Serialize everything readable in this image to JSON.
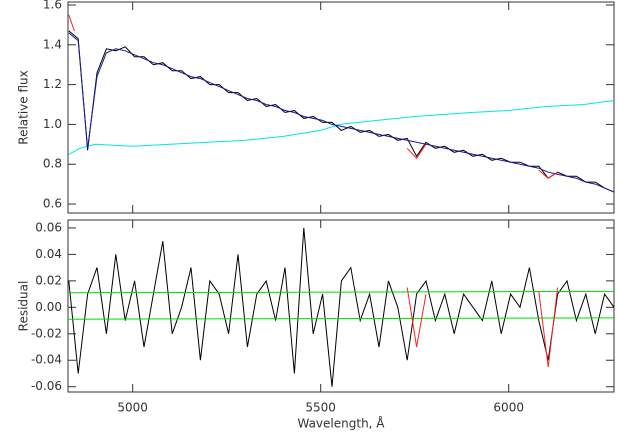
{
  "chart_data": [
    {
      "type": "line",
      "ylabel": "Relative flux",
      "x": [
        4830,
        4855,
        4880,
        4905,
        4930,
        4955,
        4980,
        5005,
        5030,
        5055,
        5080,
        5105,
        5130,
        5155,
        5180,
        5205,
        5230,
        5255,
        5280,
        5305,
        5330,
        5355,
        5380,
        5405,
        5430,
        5455,
        5480,
        5505,
        5530,
        5555,
        5580,
        5605,
        5630,
        5655,
        5680,
        5705,
        5730,
        5755,
        5780,
        5805,
        5830,
        5855,
        5880,
        5905,
        5930,
        5955,
        5980,
        6005,
        6030,
        6055,
        6080,
        6105,
        6130,
        6155,
        6180,
        6205,
        6230,
        6255,
        6280
      ],
      "xlim": [
        4828,
        6280
      ],
      "ylim": [
        0.555,
        1.615
      ],
      "yticks": [
        0.6,
        0.8,
        {
          "value": 1,
          "label": "1.0"
        },
        1.2,
        1.4,
        1.6
      ],
      "series": [
        {
          "color": "#00e5e5",
          "x": [
            4830,
            4860,
            4900,
            5000,
            5100,
            5200,
            5300,
            5400,
            5500,
            5550,
            5650,
            5750,
            5900,
            6000,
            6100,
            6200,
            6280
          ],
          "values": [
            0.85,
            0.88,
            0.9,
            0.89,
            0.9,
            0.91,
            0.92,
            0.94,
            0.97,
            1.0,
            1.02,
            1.04,
            1.06,
            1.07,
            1.09,
            1.1,
            1.12
          ]
        },
        {
          "color": "#000000",
          "values": [
            1.47,
            1.43,
            0.87,
            1.26,
            1.38,
            1.37,
            1.39,
            1.34,
            1.34,
            1.3,
            1.31,
            1.27,
            1.27,
            1.23,
            1.24,
            1.2,
            1.2,
            1.16,
            1.16,
            1.12,
            1.13,
            1.09,
            1.1,
            1.06,
            1.07,
            1.03,
            1.04,
            1.01,
            1.01,
            0.97,
            0.99,
            0.96,
            0.97,
            0.94,
            0.95,
            0.92,
            0.93,
            0.84,
            0.91,
            0.88,
            0.89,
            0.86,
            0.87,
            0.84,
            0.85,
            0.82,
            0.83,
            0.81,
            0.81,
            0.79,
            0.79,
            0.73,
            0.76,
            0.74,
            0.74,
            0.71,
            0.71,
            0.68,
            0.66
          ]
        },
        {
          "color": "#1a1aa0",
          "values": [
            1.46,
            1.42,
            0.88,
            1.24,
            1.36,
            1.38,
            1.37,
            1.35,
            1.33,
            1.31,
            1.3,
            1.28,
            1.26,
            1.24,
            1.23,
            1.21,
            1.19,
            1.17,
            1.15,
            1.13,
            1.12,
            1.1,
            1.09,
            1.07,
            1.06,
            1.04,
            1.03,
            1.02,
            1.0,
            0.99,
            0.98,
            0.97,
            0.96,
            0.95,
            0.94,
            0.93,
            0.92,
            0.91,
            0.9,
            0.89,
            0.88,
            0.87,
            0.86,
            0.85,
            0.84,
            0.83,
            0.82,
            0.81,
            0.8,
            0.79,
            0.78,
            0.76,
            0.75,
            0.74,
            0.73,
            0.71,
            0.7,
            0.68,
            0.66
          ]
        },
        {
          "color": "#ff2020",
          "x": [
            4830,
            4845,
            5000,
            5730,
            5755,
            5780,
            5900,
            6080,
            6105,
            6130
          ],
          "values": [
            1.55,
            1.47,
            null,
            0.88,
            0.83,
            0.9,
            null,
            0.77,
            0.73,
            0.76
          ]
        }
      ]
    },
    {
      "type": "line",
      "ylabel": "Residual",
      "xlabel": "Wavelength, Å",
      "x": [
        4830,
        4855,
        4880,
        4905,
        4930,
        4955,
        4980,
        5005,
        5030,
        5055,
        5080,
        5105,
        5130,
        5155,
        5180,
        5205,
        5230,
        5255,
        5280,
        5305,
        5330,
        5355,
        5380,
        5405,
        5430,
        5455,
        5480,
        5505,
        5530,
        5555,
        5580,
        5605,
        5630,
        5655,
        5680,
        5705,
        5730,
        5755,
        5780,
        5805,
        5830,
        5855,
        5880,
        5905,
        5930,
        5955,
        5980,
        6005,
        6030,
        6055,
        6080,
        6105,
        6130,
        6155,
        6180,
        6205,
        6230,
        6255,
        6280
      ],
      "xlim": [
        4828,
        6280
      ],
      "ylim": [
        -0.064,
        0.066
      ],
      "xticks": [
        5000,
        5500,
        6000
      ],
      "yticks": [
        -0.06,
        -0.04,
        -0.02,
        {
          "value": 0,
          "label": "0.00"
        },
        0.02,
        0.04,
        0.06
      ],
      "series": [
        {
          "color": "#000000",
          "values": [
            0.02,
            -0.05,
            0.01,
            0.03,
            -0.02,
            0.04,
            -0.01,
            0.02,
            -0.03,
            0.01,
            0.05,
            -0.02,
            0.0,
            0.03,
            -0.04,
            0.02,
            0.01,
            -0.02,
            0.04,
            -0.03,
            0.01,
            0.02,
            -0.01,
            0.03,
            -0.05,
            0.06,
            -0.02,
            0.01,
            -0.06,
            0.02,
            0.03,
            -0.01,
            0.01,
            -0.03,
            0.02,
            0.0,
            -0.04,
            0.01,
            0.02,
            -0.01,
            0.01,
            -0.02,
            0.01,
            0.0,
            -0.01,
            0.02,
            -0.02,
            0.01,
            0.0,
            0.03,
            -0.01,
            -0.04,
            0.01,
            0.02,
            -0.01,
            0.01,
            -0.02,
            0.01,
            0.0
          ]
        },
        {
          "color": "#00dd00",
          "x": [
            4828,
            6280
          ],
          "values": [
            0.011,
            0.012
          ]
        },
        {
          "color": "#00dd00",
          "x": [
            4828,
            6280
          ],
          "values": [
            -0.009,
            -0.008
          ]
        },
        {
          "color": "#ff2020",
          "x": [
            5730,
            5755,
            5780,
            5900,
            6080,
            6105,
            6130
          ],
          "values": [
            0.015,
            -0.03,
            0.01,
            null,
            0.012,
            -0.045,
            0.015
          ]
        }
      ]
    }
  ]
}
